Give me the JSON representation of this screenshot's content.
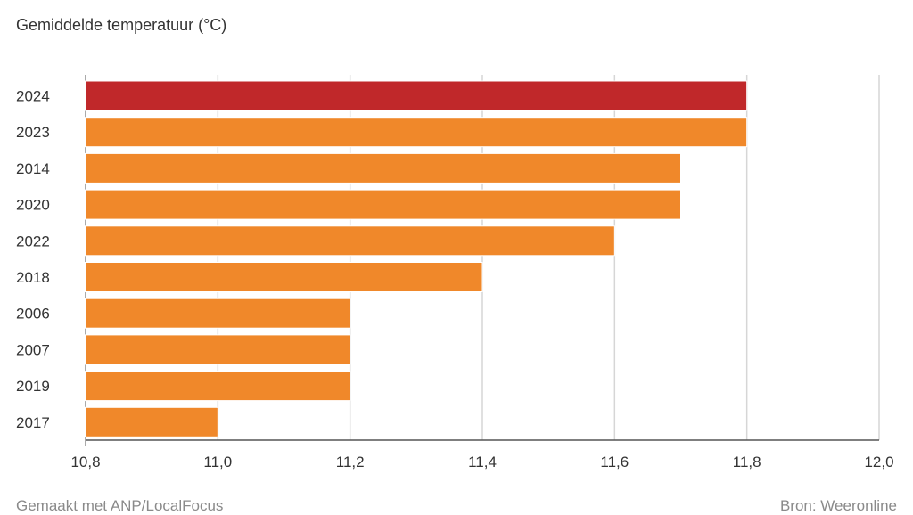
{
  "header": {
    "subtitle": "Gemiddelde temperatuur (°C)"
  },
  "footer": {
    "credit": "Gemaakt met ANP/LocalFocus",
    "source": "Bron: Weeronline"
  },
  "colors": {
    "highlight": "#c0282a",
    "bar": "#f0882a",
    "grid": "#d6d6d6",
    "axis": "#555555"
  },
  "chart_data": {
    "type": "bar",
    "orientation": "horizontal",
    "categories": [
      "2024",
      "2023",
      "2014",
      "2020",
      "2022",
      "2018",
      "2006",
      "2007",
      "2019",
      "2017"
    ],
    "values": [
      11.8,
      11.8,
      11.7,
      11.7,
      11.6,
      11.4,
      11.2,
      11.2,
      11.2,
      11.0
    ],
    "highlight_category": "2024",
    "xlim": [
      10.8,
      12.0
    ],
    "xticks": [
      "10,8",
      "11,0",
      "11,2",
      "11,4",
      "11,6",
      "11,8",
      "12,0"
    ],
    "xtick_values": [
      10.8,
      11.0,
      11.2,
      11.4,
      11.6,
      11.8,
      12.0
    ],
    "ylabel": "Gemiddelde temperatuur (°C)",
    "grid": true,
    "legend": false
  }
}
